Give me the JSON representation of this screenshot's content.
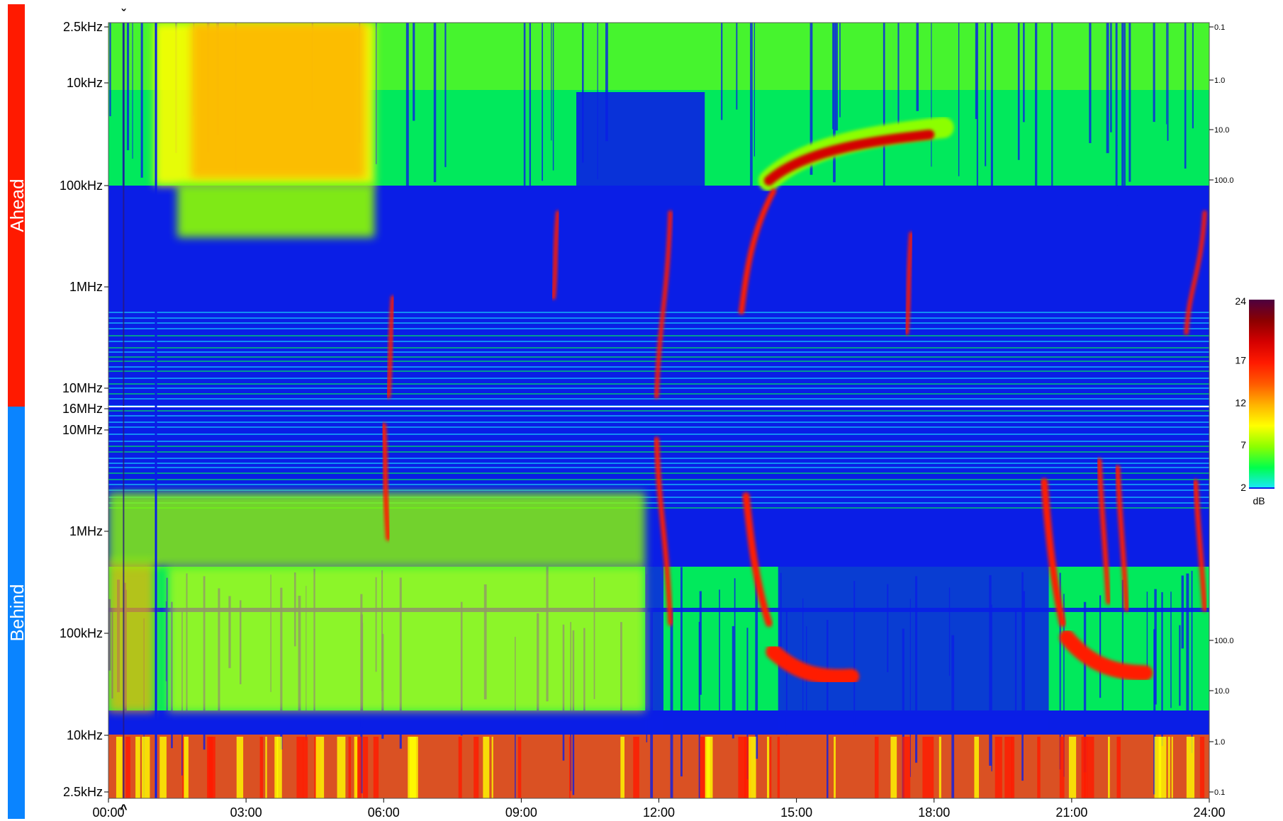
{
  "chart_data": {
    "type": "heatmap",
    "title": "",
    "panels": [
      {
        "name": "Ahead",
        "color": "#ff1a00"
      },
      {
        "name": "Behind",
        "color": "#0a84ff"
      }
    ],
    "x": {
      "ticks": [
        "00:00",
        "03:00",
        "06:00",
        "09:00",
        "12:00",
        "15:00",
        "18:00",
        "21:00",
        "24:00"
      ],
      "range_hours": [
        0,
        24
      ]
    },
    "y_left_ticks": {
      "ahead": [
        "2.5kHz",
        "10kHz",
        "100kHz",
        "1MHz",
        "10MHz",
        "16MHz"
      ],
      "behind": [
        "10MHz",
        "1MHz",
        "100kHz",
        "10kHz",
        "2.5kHz"
      ]
    },
    "y_right_ticks": {
      "ahead": [
        "0.1",
        "1.0",
        "10.0",
        "100.0"
      ],
      "behind": [
        "100.0",
        "10.0",
        "1.0",
        "0.1"
      ]
    },
    "colorbar": {
      "unit": "dB",
      "ticks": [
        "24",
        "17",
        "12",
        "7",
        "2"
      ],
      "range": [
        2,
        24
      ],
      "colors": [
        "#19e8ff",
        "#00ff4d",
        "#8cff00",
        "#ffff00",
        "#ffb300",
        "#ff5a00",
        "#ff1a00",
        "#d40000",
        "#8c0000",
        "#4d0040"
      ],
      "background": "#0a1ee6"
    },
    "markers": {
      "top": "ˇ",
      "bottom": "^",
      "time_hours": 0.33
    },
    "features": [
      {
        "panel": "ahead",
        "time_hours": 12.2,
        "kind": "type III burst"
      },
      {
        "panel": "ahead",
        "time_hours": 14.4,
        "kind": "type II burst"
      },
      {
        "panel": "ahead",
        "time_hours": 23.9,
        "kind": "type III burst"
      },
      {
        "panel": "behind",
        "time_hours": 12.1,
        "kind": "type III burst"
      },
      {
        "panel": "behind",
        "time_hours": 14.3,
        "kind": "type II burst"
      },
      {
        "panel": "behind",
        "time_hours": 20.8,
        "kind": "type II burst"
      }
    ]
  }
}
